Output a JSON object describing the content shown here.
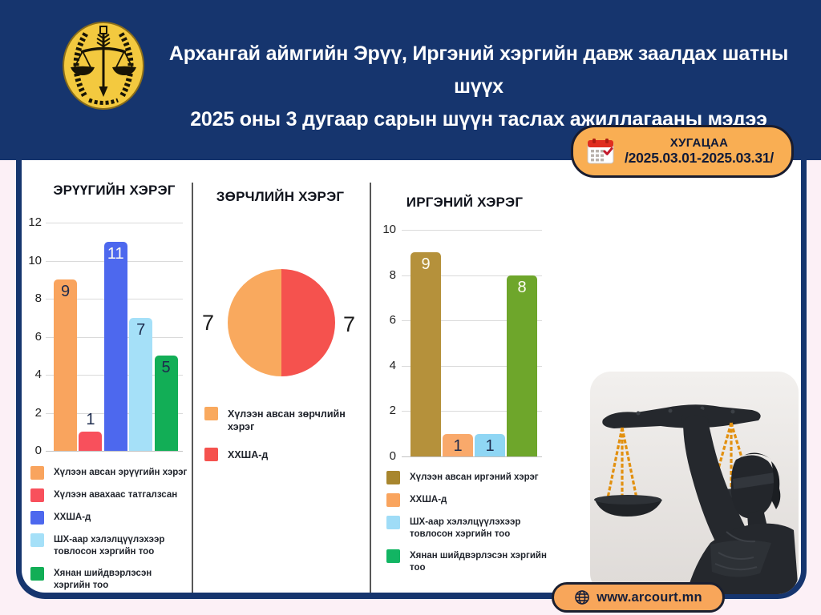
{
  "header": {
    "title_line1": "Архангай аймгийн Эрүү, Иргэний хэргийн давж заалдах шатны шүүх",
    "title_line2": "2025 оны 3 дугаар сарын шүүн таслах ажиллагааны мэдээ"
  },
  "badge": {
    "icon": "calendar-icon",
    "label": "ХУГАЦАА",
    "period": "/2025.03.01-2025.03.31/"
  },
  "footer": {
    "icon": "globe-icon",
    "website": "www.arcourt.mn"
  },
  "logo": {
    "icon": "scales-of-justice-emblem"
  },
  "photo": {
    "subject": "lady-justice-statue"
  },
  "colors": {
    "navy": "#16356e",
    "page_pink": "#fcf0f6",
    "badge_orange": "#f9ae53",
    "footer_orange": "#f8a65a"
  },
  "chart_data": [
    {
      "type": "bar",
      "title": "ЭРҮҮГИЙН ХЭРЭГ",
      "categories": [
        "Хүлээн авсан эрүүгийн хэрэг",
        "Хүлээн авахаас татгалзсан",
        "ХХША-д",
        "ШХ-аар хэлэлцүүлэхээр товлосон хэргийн тоо",
        "Хянан шийдвэрлэсэн хэргийн тоо"
      ],
      "values": [
        9,
        1,
        11,
        7,
        5
      ],
      "colors": [
        "#f9a45e",
        "#f8505c",
        "#4d68ee",
        "#a5e0f8",
        "#12ae56"
      ],
      "value_label_styles": [
        "dark",
        "dark",
        "white",
        "dark",
        "dark"
      ],
      "ylim": [
        0,
        12
      ],
      "yticks": [
        0,
        2,
        4,
        6,
        8,
        10,
        12
      ],
      "grid": true,
      "legend_position": "bottom"
    },
    {
      "type": "pie",
      "title": "ЗӨРЧЛИЙН ХЭРЭГ",
      "categories": [
        "Хүлээн авсан зөрчлийн хэрэг",
        "ХХША-д"
      ],
      "values": [
        7,
        7
      ],
      "colors": [
        "#f9a95e",
        "#f5524e"
      ],
      "legend_position": "bottom"
    },
    {
      "type": "bar",
      "title": "ИРГЭНИЙ ХЭРЭГ",
      "categories": [
        "Хүлээн авсан иргэний хэрэг",
        "ХХША-д",
        "ШХ-аар хэлэлцүүлэхээр товлосон хэргийн тоо",
        "Хянан шийдвэрлэсэн хэргийн тоо"
      ],
      "values": [
        9,
        1,
        1,
        8
      ],
      "colors": [
        "#b5913b",
        "#f9a96b",
        "#8fd6f4",
        "#6ea62b"
      ],
      "legend_colors": [
        "#a8862e",
        "#f9a45e",
        "#9fdcf7",
        "#12b563"
      ],
      "value_label_styles": [
        "white",
        "dark",
        "dark",
        "white"
      ],
      "ylim": [
        0,
        10
      ],
      "yticks": [
        0,
        2,
        4,
        6,
        8,
        10
      ],
      "grid": true,
      "legend_position": "bottom"
    }
  ]
}
